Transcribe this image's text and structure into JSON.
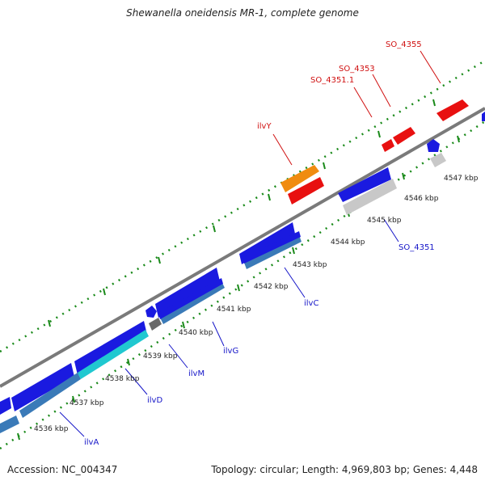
{
  "title": "Shewanella oneidensis MR-1, complete genome",
  "footer": {
    "accession": "Accession: NC_004347",
    "summary": "Topology: circular; Length: 4,969,803 bp; Genes: 4,448"
  },
  "colors": {
    "forward_gene": "#1a1ae0",
    "rna_gene": "#e81010",
    "highlight_gene": "#f08c10",
    "pseudo_gene": "#c8c8c8",
    "cds_overlap": "#3a7ab8",
    "cyan_segment": "#20c8d0",
    "backbone": "#7a7a7a",
    "ticks": "#1a8a1a",
    "blue_label": "#1515c8",
    "red_label": "#d01010"
  },
  "scale_labels": [
    "4536 kbp",
    "4537 kbp",
    "4538 kbp",
    "4539 kbp",
    "4540 kbp",
    "4541 kbp",
    "4542 kbp",
    "4543 kbp",
    "4544 kbp",
    "4545 kbp",
    "4546 kbp",
    "4547 kbp"
  ],
  "gene_labels_blue": [
    "ilvA",
    "ilvD",
    "ilvM",
    "ilvG",
    "ilvC",
    "SO_4351"
  ],
  "gene_labels_red": [
    "ilvY",
    "SO_4351.1",
    "SO_4353",
    "SO_4355"
  ]
}
